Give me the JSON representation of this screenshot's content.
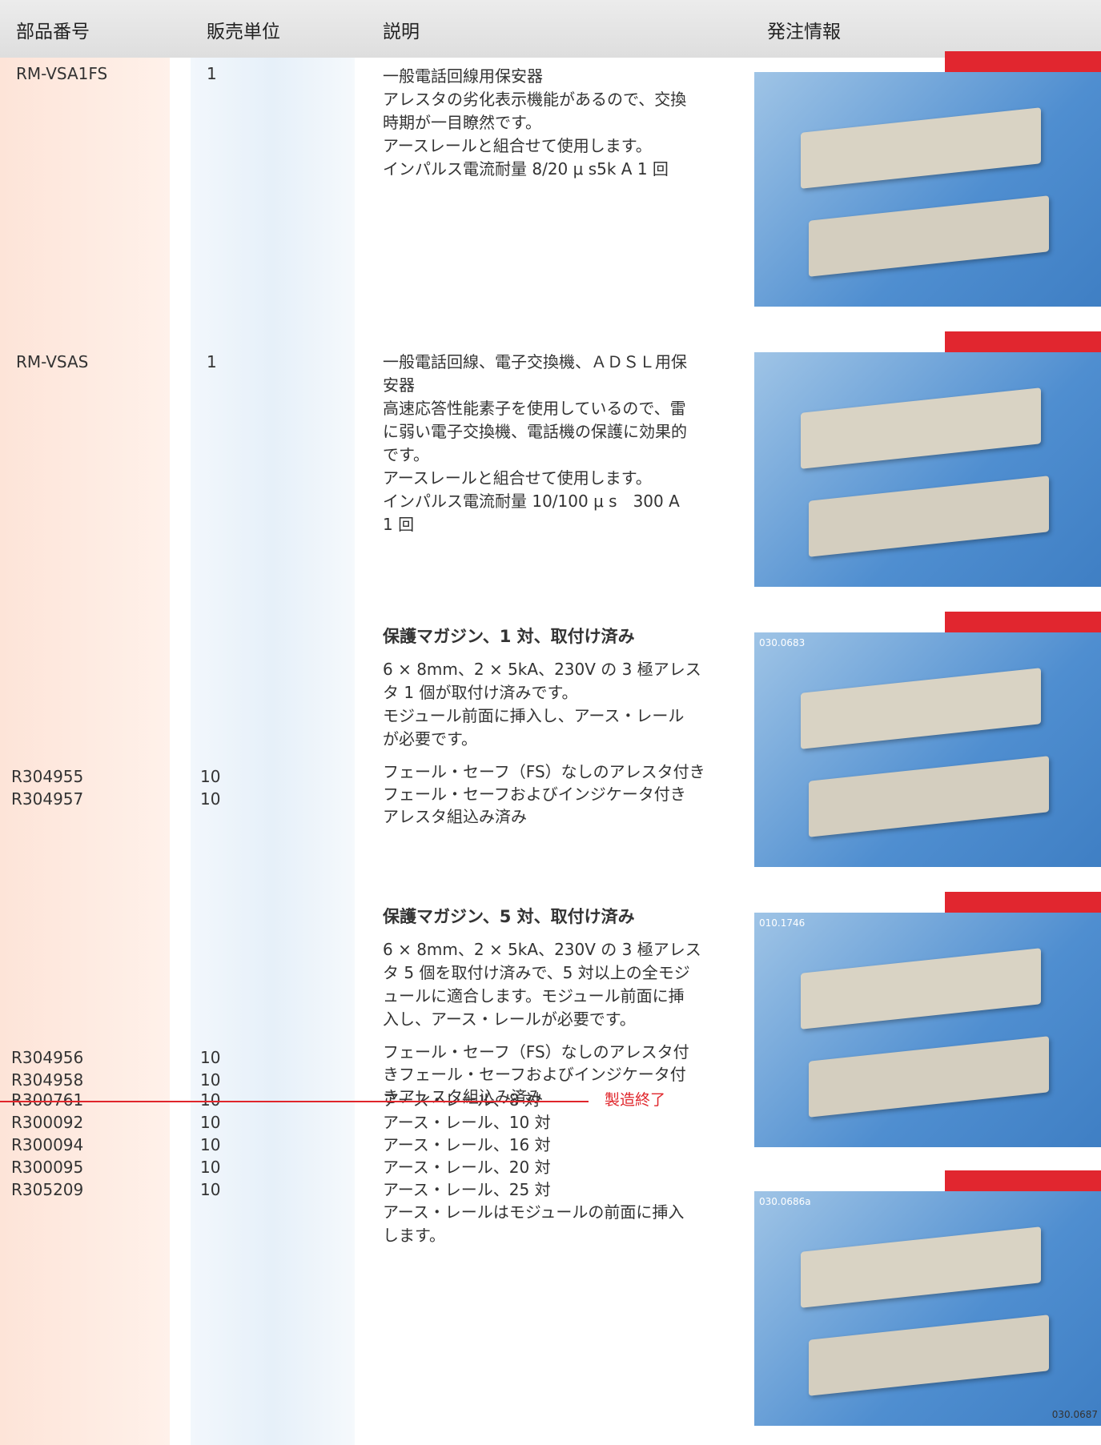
{
  "header": {
    "columns": [
      "部品番号",
      "販売単位",
      "説明",
      "発注情報"
    ]
  },
  "items": [
    {
      "parts": [
        {
          "part": "RM-VSA1FS",
          "unit": "1"
        }
      ],
      "description": [
        "一般電話回線用保安器",
        "アレスタの劣化表示機能があるので、交換",
        "時期が一目瞭然です。",
        "アースレールと組合せて使用します。",
        "インパルス電流耐量 8/20 μ s5k A 1 回"
      ],
      "image_labels": []
    },
    {
      "parts": [
        {
          "part": "RM-VSAS",
          "unit": "1"
        }
      ],
      "description": [
        "一般電話回線、電子交換機、ＡＤＳＬ用保",
        "安器",
        "高速応答性能素子を使用しているので、雷",
        "に弱い電子交換機、電話機の保護に効果的",
        "です。",
        "アースレールと組合せて使用します。",
        "インパルス電流耐量 10/100 μ s　300 A",
        "1 回"
      ],
      "image_labels": []
    },
    {
      "title": "保護マガジン、1 対、取付け済み",
      "parts": [
        {
          "part": "R304955",
          "unit": "10"
        },
        {
          "part": "R304957",
          "unit": "10"
        }
      ],
      "description": [
        "6 × 8mm、2 × 5kA、230V の 3 極アレス",
        "タ 1 個が取付け済みです。",
        "モジュール前面に挿入し、アース・レール",
        "が必要です。"
      ],
      "options": [
        "フェール・セーフ（FS）なしのアレスタ付き",
        "フェール・セーフおよびインジケータ付き",
        "アレスタ組込み済み"
      ],
      "image_labels": [
        "030.0683"
      ]
    },
    {
      "title": "保護マガジン、5 対、取付け済み",
      "parts": [
        {
          "part": "R304956",
          "unit": "10"
        },
        {
          "part": "R304958",
          "unit": "10"
        }
      ],
      "description": [
        "6 × 8mm、2 × 5kA、230V の 3 極アレス",
        "タ 5 個を取付け済みで、5 対以上の全モジ",
        "ュールに適合します。モジュール前面に挿",
        "入し、アース・レールが必要です。"
      ],
      "options": [
        "フェール・セーフ（FS）なしのアレスタ付",
        "きフェール・セーフおよびインジケータ付",
        "きアレスタ組込み済み"
      ],
      "image_labels": [
        "010.1746"
      ]
    },
    {
      "parts": [
        {
          "part": "R300761",
          "unit": "10"
        },
        {
          "part": "R300092",
          "unit": "10"
        },
        {
          "part": "R300094",
          "unit": "10"
        },
        {
          "part": "R300095",
          "unit": "10"
        },
        {
          "part": "R305209",
          "unit": "10"
        }
      ],
      "options": [
        "アース・レール、8 対",
        "アース・レール、10 対",
        "アース・レール、16 対",
        "アース・レール、20 対",
        "アース・レール、25 対"
      ],
      "note": "製造終了",
      "description": [
        "アース・レールはモジュールの前面に挿入",
        "します。"
      ],
      "image_labels": [
        "030.0686a",
        "030.0687"
      ]
    }
  ]
}
